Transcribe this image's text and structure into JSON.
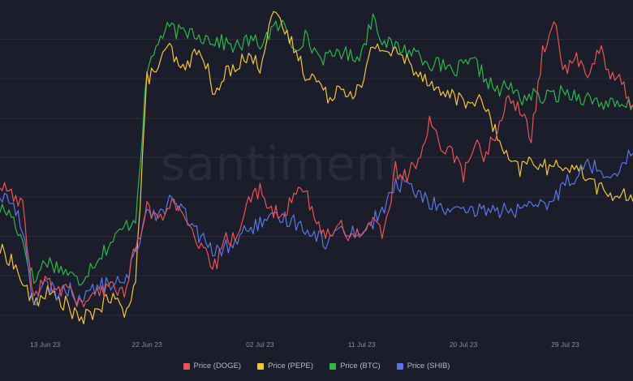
{
  "watermark": "santiment",
  "colors": {
    "DOGE": "#ea5454",
    "PEPE": "#f2c63b",
    "BTC": "#2bb84a",
    "SHIB": "#5777e8"
  },
  "chart_data": {
    "type": "line",
    "x_axis": {
      "ticks": [
        "13 Jun 23",
        "22 Jun 23",
        "02 Jul 23",
        "11 Jul 23",
        "20 Jul 23",
        "29 Jul 23"
      ],
      "range": [
        "2023-06-09",
        "2023-08-04"
      ]
    },
    "y_axis": {
      "range": [
        0,
        100
      ],
      "tick_labels": []
    },
    "grid": true,
    "legend": "bottom-center",
    "series": [
      {
        "name": "Price (DOGE)",
        "key": "DOGE",
        "points": [
          [
            "2023-06-09",
            45
          ],
          [
            "2023-06-10",
            42
          ],
          [
            "2023-06-11",
            38
          ],
          [
            "2023-06-12",
            10
          ],
          [
            "2023-06-13",
            16
          ],
          [
            "2023-06-14",
            12
          ],
          [
            "2023-06-15",
            14
          ],
          [
            "2023-06-16",
            8
          ],
          [
            "2023-06-17",
            10
          ],
          [
            "2023-06-18",
            12
          ],
          [
            "2023-06-19",
            14
          ],
          [
            "2023-06-20",
            12
          ],
          [
            "2023-06-21",
            26
          ],
          [
            "2023-06-22",
            38
          ],
          [
            "2023-06-23",
            34
          ],
          [
            "2023-06-24",
            40
          ],
          [
            "2023-06-25",
            36
          ],
          [
            "2023-06-26",
            30
          ],
          [
            "2023-06-27",
            24
          ],
          [
            "2023-06-28",
            20
          ],
          [
            "2023-06-29",
            28
          ],
          [
            "2023-06-30",
            30
          ],
          [
            "2023-07-01",
            40
          ],
          [
            "2023-07-02",
            44
          ],
          [
            "2023-07-03",
            38
          ],
          [
            "2023-07-04",
            34
          ],
          [
            "2023-07-05",
            42
          ],
          [
            "2023-07-06",
            45
          ],
          [
            "2023-07-07",
            32
          ],
          [
            "2023-07-08",
            30
          ],
          [
            "2023-07-09",
            33
          ],
          [
            "2023-07-10",
            29
          ],
          [
            "2023-07-11",
            31
          ],
          [
            "2023-07-12",
            34
          ],
          [
            "2023-07-13",
            30
          ],
          [
            "2023-07-14",
            50
          ],
          [
            "2023-07-15",
            47
          ],
          [
            "2023-07-16",
            54
          ],
          [
            "2023-07-17",
            64
          ],
          [
            "2023-07-18",
            58
          ],
          [
            "2023-07-19",
            56
          ],
          [
            "2023-07-20",
            48
          ],
          [
            "2023-07-21",
            58
          ],
          [
            "2023-07-22",
            54
          ],
          [
            "2023-07-23",
            63
          ],
          [
            "2023-07-24",
            72
          ],
          [
            "2023-07-25",
            68
          ],
          [
            "2023-07-26",
            60
          ],
          [
            "2023-07-27",
            86
          ],
          [
            "2023-07-28",
            96
          ],
          [
            "2023-07-29",
            80
          ],
          [
            "2023-07-30",
            84
          ],
          [
            "2023-07-31",
            80
          ],
          [
            "2023-08-01",
            88
          ],
          [
            "2023-08-02",
            80
          ],
          [
            "2023-08-03",
            77
          ],
          [
            "2023-08-04",
            70
          ]
        ]
      },
      {
        "name": "Price (PEPE)",
        "key": "PEPE",
        "points": [
          [
            "2023-06-09",
            25
          ],
          [
            "2023-06-10",
            22
          ],
          [
            "2023-06-11",
            15
          ],
          [
            "2023-06-12",
            8
          ],
          [
            "2023-06-13",
            12
          ],
          [
            "2023-06-14",
            10
          ],
          [
            "2023-06-15",
            8
          ],
          [
            "2023-06-16",
            3
          ],
          [
            "2023-06-17",
            5
          ],
          [
            "2023-06-18",
            8
          ],
          [
            "2023-06-19",
            10
          ],
          [
            "2023-06-20",
            6
          ],
          [
            "2023-06-21",
            15
          ],
          [
            "2023-06-22",
            78
          ],
          [
            "2023-06-23",
            82
          ],
          [
            "2023-06-24",
            88
          ],
          [
            "2023-06-25",
            80
          ],
          [
            "2023-06-26",
            85
          ],
          [
            "2023-06-27",
            86
          ],
          [
            "2023-06-28",
            72
          ],
          [
            "2023-06-29",
            80
          ],
          [
            "2023-06-30",
            83
          ],
          [
            "2023-07-01",
            85
          ],
          [
            "2023-07-02",
            82
          ],
          [
            "2023-07-03",
            98
          ],
          [
            "2023-07-04",
            94
          ],
          [
            "2023-07-05",
            88
          ],
          [
            "2023-07-06",
            80
          ],
          [
            "2023-07-07",
            78
          ],
          [
            "2023-07-08",
            72
          ],
          [
            "2023-07-09",
            76
          ],
          [
            "2023-07-10",
            74
          ],
          [
            "2023-07-11",
            75
          ],
          [
            "2023-07-12",
            89
          ],
          [
            "2023-07-13",
            87
          ],
          [
            "2023-07-14",
            86
          ],
          [
            "2023-07-15",
            84
          ],
          [
            "2023-07-16",
            80
          ],
          [
            "2023-07-17",
            78
          ],
          [
            "2023-07-18",
            73
          ],
          [
            "2023-07-19",
            74
          ],
          [
            "2023-07-20",
            70
          ],
          [
            "2023-07-21",
            72
          ],
          [
            "2023-07-22",
            69
          ],
          [
            "2023-07-23",
            60
          ],
          [
            "2023-07-24",
            52
          ],
          [
            "2023-07-25",
            50
          ],
          [
            "2023-07-26",
            53
          ],
          [
            "2023-07-27",
            51
          ],
          [
            "2023-07-28",
            50
          ],
          [
            "2023-07-29",
            52
          ],
          [
            "2023-07-30",
            50
          ],
          [
            "2023-07-31",
            48
          ],
          [
            "2023-08-01",
            44
          ],
          [
            "2023-08-02",
            42
          ],
          [
            "2023-08-03",
            42
          ],
          [
            "2023-08-04",
            40
          ]
        ]
      },
      {
        "name": "Price (BTC)",
        "key": "BTC",
        "points": [
          [
            "2023-06-09",
            38
          ],
          [
            "2023-06-10",
            36
          ],
          [
            "2023-06-11",
            28
          ],
          [
            "2023-06-12",
            15
          ],
          [
            "2023-06-13",
            22
          ],
          [
            "2023-06-14",
            20
          ],
          [
            "2023-06-15",
            18
          ],
          [
            "2023-06-16",
            15
          ],
          [
            "2023-06-17",
            20
          ],
          [
            "2023-06-18",
            24
          ],
          [
            "2023-06-19",
            28
          ],
          [
            "2023-06-20",
            32
          ],
          [
            "2023-06-21",
            35
          ],
          [
            "2023-06-22",
            80
          ],
          [
            "2023-06-23",
            90
          ],
          [
            "2023-06-24",
            94
          ],
          [
            "2023-06-25",
            92
          ],
          [
            "2023-06-26",
            93
          ],
          [
            "2023-06-27",
            91
          ],
          [
            "2023-06-28",
            90
          ],
          [
            "2023-06-29",
            89
          ],
          [
            "2023-06-30",
            88
          ],
          [
            "2023-07-01",
            90
          ],
          [
            "2023-07-02",
            89
          ],
          [
            "2023-07-03",
            93
          ],
          [
            "2023-07-04",
            95
          ],
          [
            "2023-07-05",
            88
          ],
          [
            "2023-07-06",
            91
          ],
          [
            "2023-07-07",
            86
          ],
          [
            "2023-07-08",
            84
          ],
          [
            "2023-07-09",
            87
          ],
          [
            "2023-07-10",
            85
          ],
          [
            "2023-07-11",
            86
          ],
          [
            "2023-07-12",
            98
          ],
          [
            "2023-07-13",
            89
          ],
          [
            "2023-07-14",
            88
          ],
          [
            "2023-07-15",
            87
          ],
          [
            "2023-07-16",
            86
          ],
          [
            "2023-07-17",
            83
          ],
          [
            "2023-07-18",
            82
          ],
          [
            "2023-07-19",
            80
          ],
          [
            "2023-07-20",
            82
          ],
          [
            "2023-07-21",
            83
          ],
          [
            "2023-07-22",
            78
          ],
          [
            "2023-07-23",
            74
          ],
          [
            "2023-07-24",
            76
          ],
          [
            "2023-07-25",
            72
          ],
          [
            "2023-07-26",
            73
          ],
          [
            "2023-07-27",
            72
          ],
          [
            "2023-07-28",
            73
          ],
          [
            "2023-07-29",
            74
          ],
          [
            "2023-07-30",
            73
          ],
          [
            "2023-07-31",
            72
          ],
          [
            "2023-08-01",
            71
          ],
          [
            "2023-08-02",
            70
          ],
          [
            "2023-08-03",
            69
          ],
          [
            "2023-08-04",
            70
          ]
        ]
      },
      {
        "name": "Price (SHIB)",
        "key": "SHIB",
        "points": [
          [
            "2023-06-09",
            42
          ],
          [
            "2023-06-10",
            40
          ],
          [
            "2023-06-11",
            32
          ],
          [
            "2023-06-12",
            8
          ],
          [
            "2023-06-13",
            14
          ],
          [
            "2023-06-14",
            12
          ],
          [
            "2023-06-15",
            13
          ],
          [
            "2023-06-16",
            10
          ],
          [
            "2023-06-17",
            12
          ],
          [
            "2023-06-18",
            14
          ],
          [
            "2023-06-19",
            15
          ],
          [
            "2023-06-20",
            14
          ],
          [
            "2023-06-21",
            24
          ],
          [
            "2023-06-22",
            38
          ],
          [
            "2023-06-23",
            36
          ],
          [
            "2023-06-24",
            40
          ],
          [
            "2023-06-25",
            38
          ],
          [
            "2023-06-26",
            32
          ],
          [
            "2023-06-27",
            28
          ],
          [
            "2023-06-28",
            24
          ],
          [
            "2023-06-29",
            26
          ],
          [
            "2023-06-30",
            28
          ],
          [
            "2023-07-01",
            32
          ],
          [
            "2023-07-02",
            33
          ],
          [
            "2023-07-03",
            34
          ],
          [
            "2023-07-04",
            35
          ],
          [
            "2023-07-05",
            34
          ],
          [
            "2023-07-06",
            32
          ],
          [
            "2023-07-07",
            30
          ],
          [
            "2023-07-08",
            27
          ],
          [
            "2023-07-09",
            32
          ],
          [
            "2023-07-10",
            31
          ],
          [
            "2023-07-11",
            30
          ],
          [
            "2023-07-12",
            34
          ],
          [
            "2023-07-13",
            38
          ],
          [
            "2023-07-14",
            45
          ],
          [
            "2023-07-15",
            46
          ],
          [
            "2023-07-16",
            42
          ],
          [
            "2023-07-17",
            40
          ],
          [
            "2023-07-18",
            38
          ],
          [
            "2023-07-19",
            37
          ],
          [
            "2023-07-20",
            36
          ],
          [
            "2023-07-21",
            37
          ],
          [
            "2023-07-22",
            38
          ],
          [
            "2023-07-23",
            37
          ],
          [
            "2023-07-24",
            38
          ],
          [
            "2023-07-25",
            37
          ],
          [
            "2023-07-26",
            38
          ],
          [
            "2023-07-27",
            39
          ],
          [
            "2023-07-28",
            40
          ],
          [
            "2023-07-29",
            47
          ],
          [
            "2023-07-30",
            48
          ],
          [
            "2023-07-31",
            52
          ],
          [
            "2023-08-01",
            50
          ],
          [
            "2023-08-02",
            48
          ],
          [
            "2023-08-03",
            52
          ],
          [
            "2023-08-04",
            55
          ]
        ]
      }
    ]
  }
}
